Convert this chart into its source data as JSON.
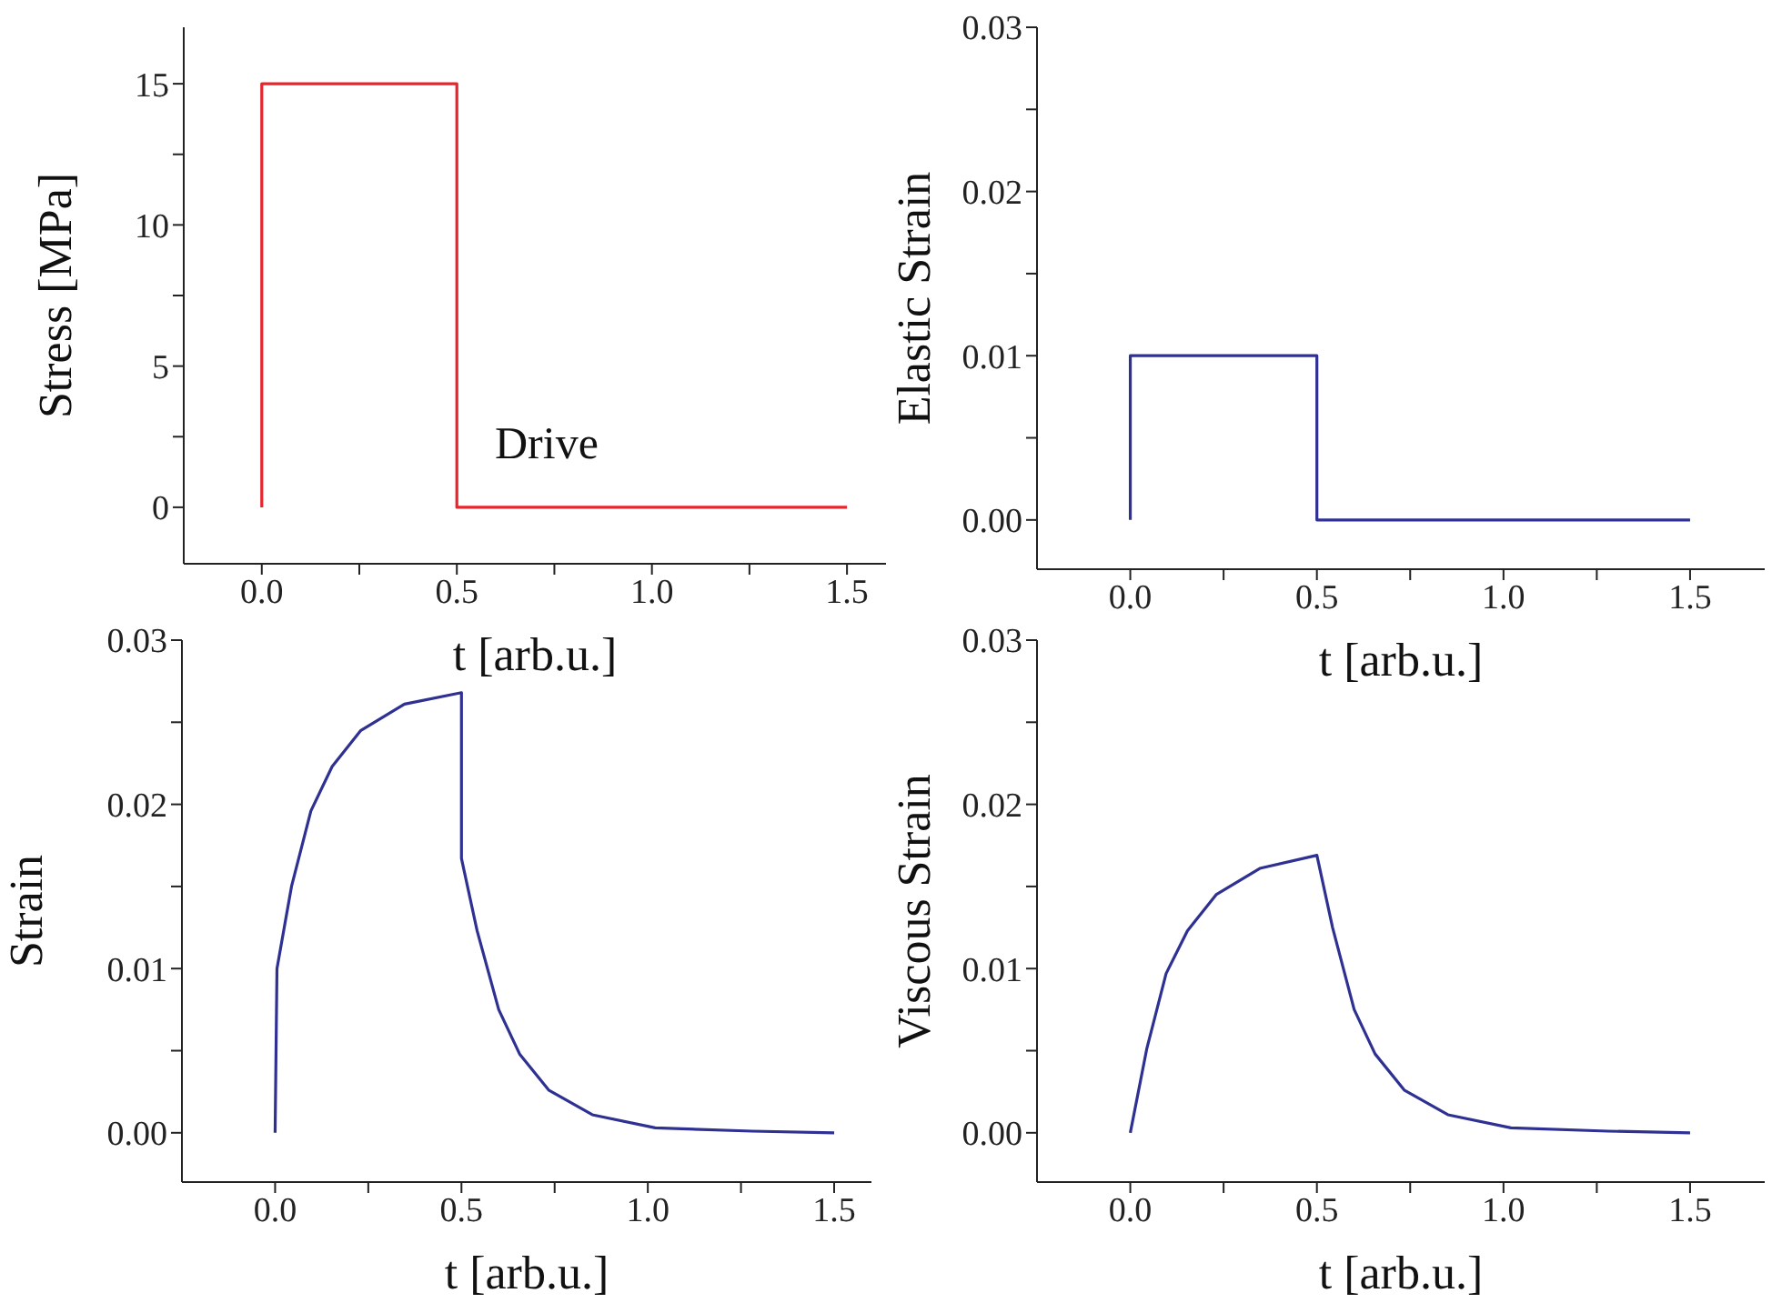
{
  "chart_data": [
    {
      "type": "line",
      "ylabel": "Stress [MPa]",
      "xlabel": "t [arb.u.]",
      "x": [
        0,
        0,
        0.5,
        0.5,
        1.5
      ],
      "series": [
        {
          "color": "#e8242c",
          "values": [
            0,
            15,
            15,
            0,
            0
          ]
        }
      ],
      "xlim": [
        -0.2,
        1.6
      ],
      "ylim": [
        -2,
        17
      ],
      "xticks": [
        {
          "value": 0,
          "label": "0.0"
        },
        {
          "value": 0.25,
          "label": null
        },
        {
          "value": 0.5,
          "label": "0.5"
        },
        {
          "value": 0.75,
          "label": null
        },
        {
          "value": 1,
          "label": "1.0"
        },
        {
          "value": 1.25,
          "label": null
        },
        {
          "value": 1.5,
          "label": "1.5"
        }
      ],
      "yticks": [
        0,
        {
          "value": 2.5,
          "label": null
        },
        5,
        {
          "value": 7.5,
          "label": null
        },
        10,
        {
          "value": 12.5,
          "label": null
        },
        15
      ],
      "annotations": [
        "Drive"
      ]
    },
    {
      "type": "line",
      "ylabel": "Elastic Strain",
      "xlabel": "t [arb.u.]",
      "x": [
        0,
        0,
        0.5,
        0.5,
        1.5
      ],
      "series": [
        {
          "color": "#2e3192",
          "values": [
            0,
            0.01,
            0.01,
            0,
            0
          ]
        }
      ],
      "xlim": [
        -0.25,
        1.7
      ],
      "ylim": [
        -0.003,
        0.03
      ],
      "xticks": [
        {
          "value": 0,
          "label": "0.0"
        },
        {
          "value": 0.25,
          "label": null
        },
        {
          "value": 0.5,
          "label": "0.5"
        },
        {
          "value": 0.75,
          "label": null
        },
        {
          "value": 1,
          "label": "1.0"
        },
        {
          "value": 1.25,
          "label": null
        },
        {
          "value": 1.5,
          "label": "1.5"
        }
      ],
      "yticks": [
        {
          "value": 0,
          "label": "0.00"
        },
        {
          "value": 0.005,
          "label": null
        },
        {
          "value": 0.01,
          "label": "0.01"
        },
        {
          "value": 0.015,
          "label": null
        },
        {
          "value": 0.02,
          "label": "0.02"
        },
        {
          "value": 0.025,
          "label": null
        },
        {
          "value": 0.03,
          "label": "0.03"
        }
      ]
    },
    {
      "type": "line",
      "ylabel": "Strain",
      "xlabel": "t [arb.u.]",
      "x": [
        0,
        0.005,
        0.044,
        0.096,
        0.153,
        0.23,
        0.347,
        0.5,
        0.5,
        0.542,
        0.6,
        0.656,
        0.734,
        0.851,
        1.02,
        1.28,
        1.5
      ],
      "series": [
        {
          "color": "#2e3192",
          "values": [
            0,
            0.01,
            0.015,
            0.0196,
            0.0223,
            0.0245,
            0.0261,
            0.0268,
            0.0167,
            0.0123,
            0.0075,
            0.0048,
            0.0026,
            0.0011,
            0.0003,
            0.0001,
            0
          ]
        }
      ],
      "xlim": [
        -0.25,
        1.6
      ],
      "ylim": [
        -0.003,
        0.03
      ],
      "xticks": [
        {
          "value": 0,
          "label": "0.0"
        },
        {
          "value": 0.25,
          "label": null
        },
        {
          "value": 0.5,
          "label": "0.5"
        },
        {
          "value": 0.75,
          "label": null
        },
        {
          "value": 1,
          "label": "1.0"
        },
        {
          "value": 1.25,
          "label": null
        },
        {
          "value": 1.5,
          "label": "1.5"
        }
      ],
      "yticks": [
        {
          "value": 0,
          "label": "0.00"
        },
        {
          "value": 0.005,
          "label": null
        },
        {
          "value": 0.01,
          "label": "0.01"
        },
        {
          "value": 0.015,
          "label": null
        },
        {
          "value": 0.02,
          "label": "0.02"
        },
        {
          "value": 0.025,
          "label": null
        },
        {
          "value": 0.03,
          "label": "0.03"
        }
      ]
    },
    {
      "type": "line",
      "ylabel": "Viscous Strain",
      "xlabel": "t [arb.u.]",
      "x": [
        0,
        0.044,
        0.096,
        0.153,
        0.23,
        0.347,
        0.5,
        0.542,
        0.6,
        0.656,
        0.734,
        0.851,
        1.02,
        1.28,
        1.5
      ],
      "series": [
        {
          "color": "#2e3192",
          "values": [
            0,
            0.0051,
            0.0097,
            0.0123,
            0.0145,
            0.0161,
            0.0169,
            0.0125,
            0.0075,
            0.0048,
            0.0026,
            0.0011,
            0.0003,
            0.0001,
            0
          ]
        }
      ],
      "xlim": [
        -0.25,
        1.7
      ],
      "ylim": [
        -0.003,
        0.03
      ],
      "xticks": [
        {
          "value": 0,
          "label": "0.0"
        },
        {
          "value": 0.25,
          "label": null
        },
        {
          "value": 0.5,
          "label": "0.5"
        },
        {
          "value": 0.75,
          "label": null
        },
        {
          "value": 1,
          "label": "1.0"
        },
        {
          "value": 1.25,
          "label": null
        },
        {
          "value": 1.5,
          "label": "1.5"
        }
      ],
      "yticks": [
        {
          "value": 0,
          "label": "0.00"
        },
        {
          "value": 0.005,
          "label": null
        },
        {
          "value": 0.01,
          "label": "0.01"
        },
        {
          "value": 0.015,
          "label": null
        },
        {
          "value": 0.02,
          "label": "0.02"
        },
        {
          "value": 0.025,
          "label": null
        },
        {
          "value": 0.03,
          "label": "0.03"
        }
      ]
    }
  ]
}
